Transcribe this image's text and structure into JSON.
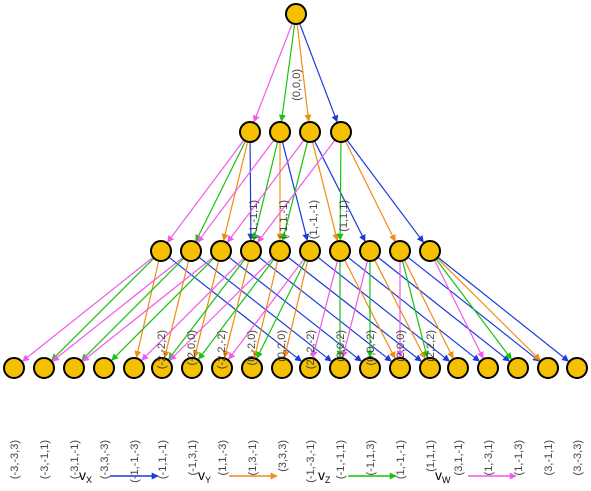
{
  "colors": {
    "node_fill": "#F5C000",
    "node_stroke": "#000000",
    "vx": "#1a3bdc",
    "vy": "#f28c12",
    "vz": "#17c40f",
    "vw": "#f05ae8",
    "label": "#444444"
  },
  "levels": [
    {
      "nodes": [
        {
          "label": "(0,0,0)"
        }
      ]
    },
    {
      "nodes": [
        {
          "label": ""
        },
        {
          "label": "(-1,-1,1)"
        },
        {
          "label": "(-1,1,-1)"
        },
        {
          "label": "(1,-1,-1)"
        },
        {
          "label": "(1,1,1)"
        }
      ]
    },
    {
      "nodes": [
        {
          "label": "(-2,-2,2)"
        },
        {
          "label": "(-2,0,0)"
        },
        {
          "label": "(-2,2,-2)"
        },
        {
          "label": "(0,-2,0)"
        },
        {
          "label": "(0,2,0)"
        },
        {
          "label": "(2,-2,-2)"
        },
        {
          "label": "(0,0,2)"
        },
        {
          "label": "(0,0,-2)"
        },
        {
          "label": "(2,0,0)"
        },
        {
          "label": "(2,2,2)"
        }
      ]
    },
    {
      "nodes": [
        {
          "label": "(-3,-3,3)"
        },
        {
          "label": "(-3,-1,1)"
        },
        {
          "label": "(-3,1,-1)"
        },
        {
          "label": "(-3,3,-3)"
        },
        {
          "label": "(-1,-1,-3)"
        },
        {
          "label": "(-1,1,-1)"
        },
        {
          "label": "(-1,3,1)"
        },
        {
          "label": "(1,1,-3)"
        },
        {
          "label": "(1,3,-1)"
        },
        {
          "label": "(3,3,3)"
        },
        {
          "label": "(-1,-3,-1)"
        },
        {
          "label": "(-1,-1,1)"
        },
        {
          "label": "(-1,1,3)"
        },
        {
          "label": "(1,-1,-1)"
        },
        {
          "label": "(1,1,1)"
        },
        {
          "label": "(3,1,-1)"
        },
        {
          "label": "(1,-3,1)"
        },
        {
          "label": "(1,-1,3)"
        },
        {
          "label": "(3,-1,1)"
        },
        {
          "label": "(3,-3,3)"
        }
      ]
    }
  ],
  "legend": [
    {
      "letter": "v",
      "sub": "X",
      "color_key": "vx"
    },
    {
      "letter": "v",
      "sub": "Y",
      "color_key": "vy"
    },
    {
      "letter": "v",
      "sub": "Z",
      "color_key": "vz"
    },
    {
      "letter": "v",
      "sub": "W",
      "color_key": "vw"
    }
  ]
}
